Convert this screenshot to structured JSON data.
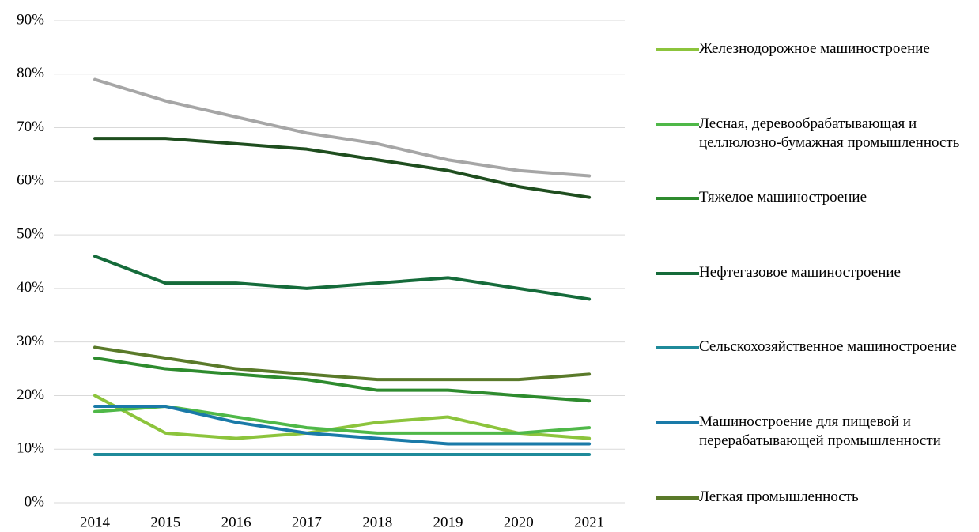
{
  "chart_data": {
    "type": "line",
    "categories": [
      "2014",
      "2015",
      "2016",
      "2017",
      "2018",
      "2019",
      "2020",
      "2021"
    ],
    "ylim": [
      0,
      90
    ],
    "yticks": [
      {
        "value": 0,
        "label": "0%"
      },
      {
        "value": 10,
        "label": "10%"
      },
      {
        "value": 20,
        "label": "20%"
      },
      {
        "value": 30,
        "label": "30%"
      },
      {
        "value": 40,
        "label": "40%"
      },
      {
        "value": 50,
        "label": "50%"
      },
      {
        "value": 60,
        "label": "60%"
      },
      {
        "value": 70,
        "label": "70%"
      },
      {
        "value": 80,
        "label": "80%"
      },
      {
        "value": 90,
        "label": "90%"
      }
    ],
    "grid": true,
    "legend": "right",
    "series": [
      {
        "color": "#a6a6a6",
        "values": [
          79,
          75,
          72,
          69,
          67,
          64,
          62,
          61
        ]
      },
      {
        "color": "#1f4e1f",
        "values": [
          68,
          68,
          67,
          66,
          64,
          62,
          59,
          57
        ]
      },
      {
        "name": "Железнодорожное машиностроение",
        "color": "#8cc43c",
        "values": [
          20,
          13,
          12,
          13,
          15,
          16,
          13,
          12
        ]
      },
      {
        "name": "Лесная, деревообрабатывающая и целлюлозно-бумажная промышленность",
        "color": "#4fb848",
        "values": [
          17,
          18,
          16,
          14,
          13,
          13,
          13,
          14
        ]
      },
      {
        "name": "Тяжелое машиностроение",
        "color": "#2e8b2e",
        "values": [
          27,
          25,
          24,
          23,
          21,
          21,
          20,
          19
        ]
      },
      {
        "name": "Нефтегазовое машиностроение",
        "color": "#156b3a",
        "values": [
          46,
          41,
          41,
          40,
          41,
          42,
          40,
          38
        ]
      },
      {
        "name": "Сельскохозяйственное машиностроение",
        "color": "#1f8a9a",
        "values": [
          9,
          9,
          9,
          9,
          9,
          9,
          9,
          9
        ]
      },
      {
        "name": "Машиностроение для пищевой и перерабатывающей промышленности",
        "color": "#1a7aa8",
        "values": [
          18,
          18,
          15,
          13,
          12,
          11,
          11,
          11
        ]
      },
      {
        "name": "Легкая промышленность",
        "color": "#5a7a2a",
        "values": [
          29,
          27,
          25,
          24,
          23,
          23,
          23,
          24
        ]
      }
    ]
  }
}
